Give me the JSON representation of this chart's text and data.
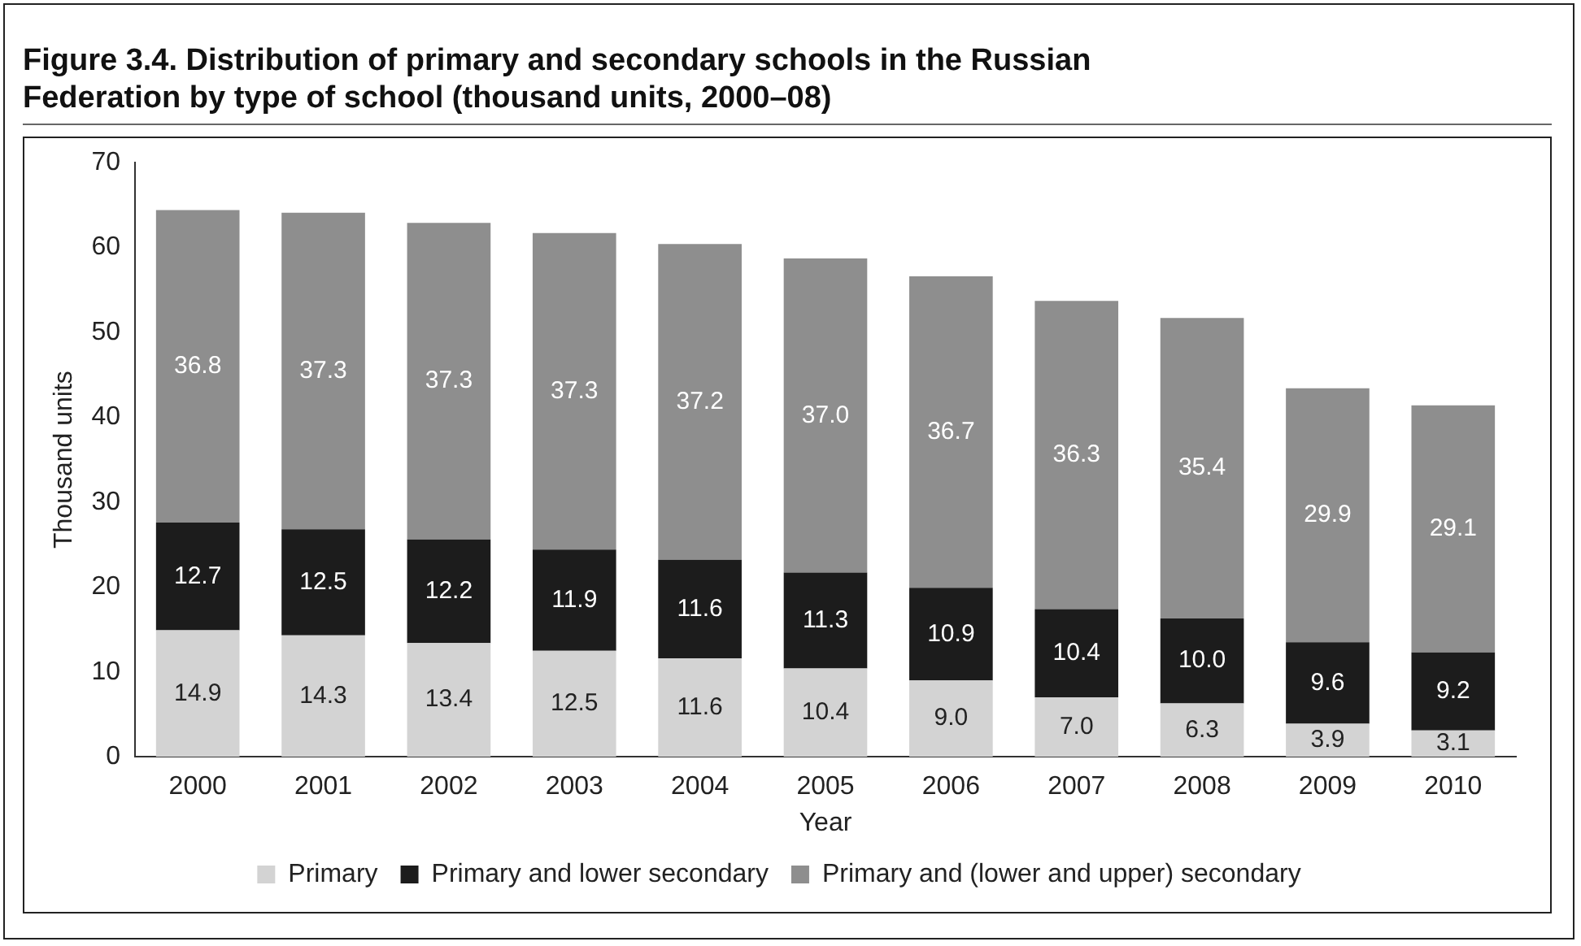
{
  "chart_data": {
    "type": "bar",
    "title": "Figure 3.4. Distribution of primary and secondary schools in the Russian Federation by type of school (thousand units, 2000–08)",
    "xlabel": "Year",
    "ylabel": "Thousand units",
    "categories": [
      "2000",
      "2001",
      "2002",
      "2003",
      "2004",
      "2005",
      "2006",
      "2007",
      "2008",
      "2009",
      "2010"
    ],
    "stacked": true,
    "series": [
      {
        "name": "Primary",
        "color": "#d3d3d3",
        "values": [
          14.9,
          14.3,
          13.4,
          12.5,
          11.6,
          10.4,
          9,
          7,
          6.3,
          3.9,
          3.1
        ],
        "value_labels": [
          "14.9",
          "14.3",
          "13.4",
          "12.5",
          "11.6",
          "10.4",
          "9.0",
          "7.0",
          "6.3",
          "3.9",
          "3.1"
        ]
      },
      {
        "name": "Primary and lower secondary",
        "color": "#1c1c1c",
        "values": [
          12.7,
          12.5,
          12.2,
          11.9,
          11.6,
          11.3,
          10.9,
          10.4,
          10,
          9.6,
          9.2
        ],
        "value_labels": [
          "12.7",
          "12.5",
          "12.2",
          "11.9",
          "11.6",
          "11.3",
          "10.9",
          "10.4",
          "10.0",
          "9.6",
          "9.2"
        ]
      },
      {
        "name": "Primary and (lower and upper) secondary",
        "color": "#8e8e8e",
        "values": [
          36.8,
          37.3,
          37.3,
          37.3,
          37.2,
          37,
          36.7,
          36.3,
          35.4,
          29.9,
          29.1
        ],
        "value_labels": [
          "36.8",
          "37.3",
          "37.3",
          "37.3",
          "37.2",
          "37.0",
          "36.7",
          "36.3",
          "35.4",
          "29.9",
          "29.1"
        ]
      }
    ],
    "ylim": [
      0,
      70
    ],
    "yticks": [
      0,
      10,
      20,
      30,
      40,
      50,
      60,
      70
    ],
    "grid": false,
    "legend": "bottom"
  }
}
